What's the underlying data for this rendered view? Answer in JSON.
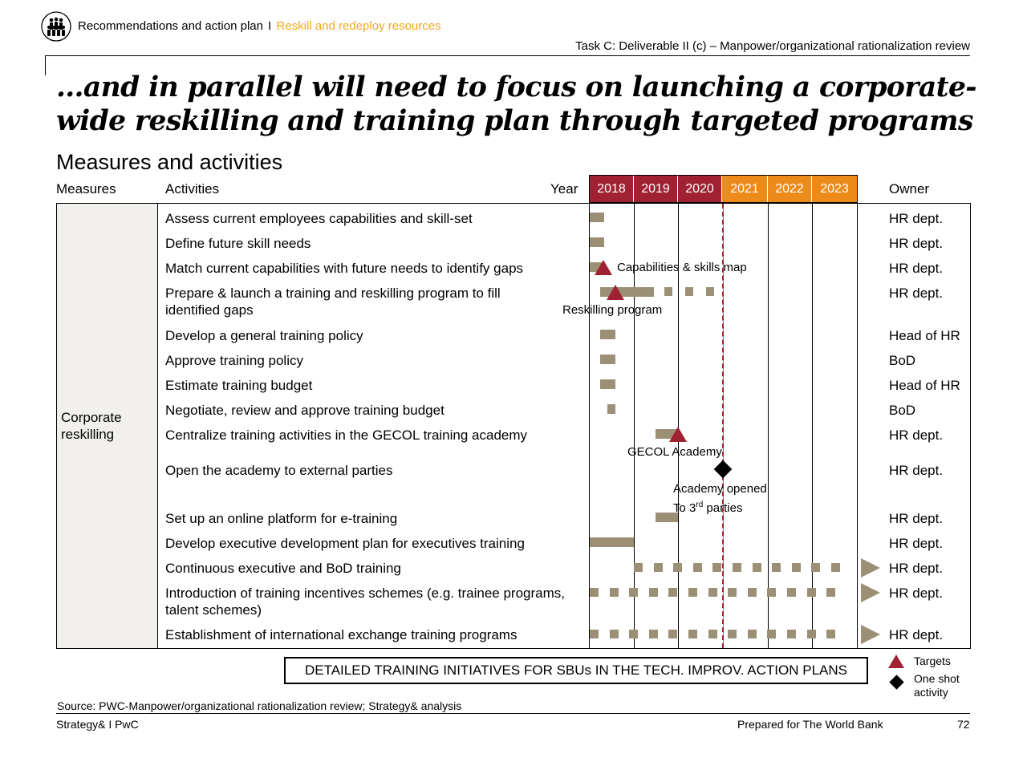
{
  "header": {
    "section": "Recommendations and action plan",
    "separator": "I",
    "subsection": "Reskill and redeploy resources",
    "task": "Task C: Deliverable II (c) – Manpower/organizational rationalization review"
  },
  "headline": "…and in parallel will need to focus on launching a corporate-wide reskilling and training plan through targeted programs",
  "subtitle": "Measures and activities",
  "table": {
    "col_measures": "Measures",
    "col_activities": "Activities",
    "col_year": "Year",
    "col_owner": "Owner",
    "years": [
      "2018",
      "2019",
      "2020",
      "2021",
      "2022",
      "2023"
    ],
    "measure": "Corporate reskilling",
    "rows": [
      {
        "activity": "Assess current employees capabilities and skill-set",
        "owner": "HR dept."
      },
      {
        "activity": "Define future skill needs",
        "owner": "HR dept."
      },
      {
        "activity": "Match current capabilities with future needs to identify gaps",
        "owner": "HR dept."
      },
      {
        "activity": "Prepare & launch a training and reskilling program to fill identified gaps",
        "owner": "HR dept."
      },
      {
        "activity": "Develop a general training policy",
        "owner": "Head of HR"
      },
      {
        "activity": "Approve training policy",
        "owner": "BoD"
      },
      {
        "activity": "Estimate training budget",
        "owner": "Head of HR"
      },
      {
        "activity": "Negotiate, review and approve training budget",
        "owner": "BoD"
      },
      {
        "activity": "Centralize training activities in the GECOL training academy",
        "owner": "HR dept."
      },
      {
        "activity": "Open the academy to external parties",
        "owner": "HR dept."
      },
      {
        "activity": "Set up an online platform for e-training",
        "owner": "HR dept."
      },
      {
        "activity": "Develop executive development plan for executives training",
        "owner": "HR dept."
      },
      {
        "activity": "Continuous executive and BoD training",
        "owner": "HR dept."
      },
      {
        "activity": "Introduction of training incentives schemes (e.g. trainee programs, talent schemes)",
        "owner": "HR dept."
      },
      {
        "activity": "Establishment of international exchange training programs",
        "owner": "HR dept."
      }
    ]
  },
  "annotations": {
    "capabilities_map": "Capabilities & skills map",
    "reskilling_program": "Reskilling program",
    "gecol_academy": "GECOL Academy",
    "academy_opened_line1": "Academy opened",
    "academy_opened_line2_pre": "To 3",
    "academy_opened_sup": "rd",
    "academy_opened_line2_post": " parties"
  },
  "callout": "DETAILED TRAINING INITIATIVES FOR SBUs IN THE TECH. IMPROV. ACTION PLANS",
  "legend": {
    "targets": "Targets",
    "one_shot": "One shot activity"
  },
  "colors": {
    "accent_red": "#a02232",
    "accent_orange": "#ec8b1a",
    "bar": "#9b8f76",
    "subsection": "#f0a81e"
  },
  "source": "Source: PWC-Manpower/organizational rationalization review; Strategy& analysis",
  "footer": {
    "left": "Strategy& I PwC",
    "center": "Prepared for The World Bank",
    "page": "72"
  }
}
